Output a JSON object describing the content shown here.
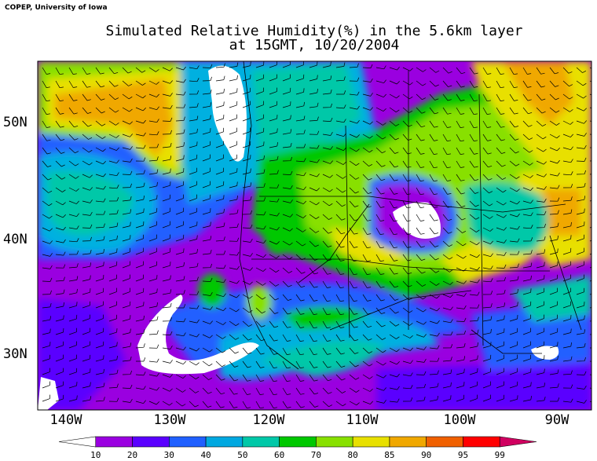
{
  "credit": "COPEP, University of Iowa",
  "title": {
    "line1": "Simulated Relative Humidity(%) in the 5.6km layer",
    "line2": "at 15GMT, 10/20/2004"
  },
  "axes": {
    "longitude_labels": [
      "140W",
      "130W",
      "120W",
      "110W",
      "100W",
      "90W"
    ],
    "latitude_labels": [
      "50N",
      "40N",
      "30N"
    ]
  },
  "colorbar": {
    "levels": [
      "10",
      "20",
      "30",
      "40",
      "50",
      "60",
      "70",
      "80",
      "85",
      "90",
      "95",
      "99"
    ],
    "colors": [
      "#ffffff",
      "#9a00e0",
      "#5a00ff",
      "#2060ff",
      "#00a8e0",
      "#00c8a8",
      "#00c800",
      "#88e000",
      "#e8e000",
      "#f0a800",
      "#f06000",
      "#ff0000",
      "#d00060"
    ]
  },
  "palette": {
    "white": "#ffffff",
    "purple": "#9a00e0",
    "violet": "#5a00ff",
    "blue": "#2060ff",
    "cyan": "#00b0e0",
    "teal": "#00c8a8",
    "green": "#00c800",
    "lime": "#88e000",
    "yellow": "#e8e000",
    "orange": "#f0a800"
  }
}
